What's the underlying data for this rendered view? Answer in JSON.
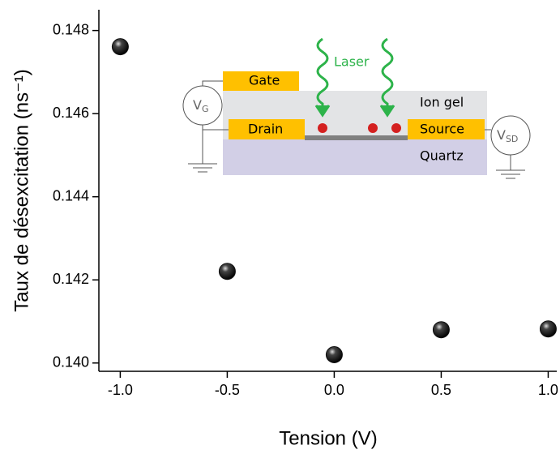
{
  "chart_data": {
    "type": "scatter",
    "x_label": "Tension (V)",
    "y_label": "Taux de désexcitation (ns⁻¹)",
    "x": [
      -1.0,
      -0.5,
      0.0,
      0.5,
      1.0
    ],
    "values": [
      0.14761,
      0.142205,
      0.1402,
      0.1408,
      0.14082
    ],
    "color": "#111111",
    "xlim": [
      -1.1,
      1.04
    ],
    "ylim": [
      0.1398,
      0.1485
    ],
    "xticks": [
      {
        "value": -1.0,
        "label": "-1.0"
      },
      {
        "value": -0.5,
        "label": "-0.5"
      },
      {
        "value": 0.0,
        "label": "0.0"
      },
      {
        "value": 0.5,
        "label": "0.5"
      },
      {
        "value": 1.0,
        "label": "1.0"
      }
    ],
    "yticks": [
      {
        "value": 0.14,
        "label": "0.140"
      },
      0.142,
      0.144,
      0.146,
      0.148
    ]
  },
  "inset": {
    "gate": "Gate",
    "drain": "Drain",
    "source": "Source",
    "laser": "Laser",
    "ion_gel": "Ion gel",
    "quartz": "Quartz",
    "vg": {
      "main": "V",
      "sub": "G"
    },
    "vsd": {
      "main": "V",
      "sub": "SD"
    }
  }
}
